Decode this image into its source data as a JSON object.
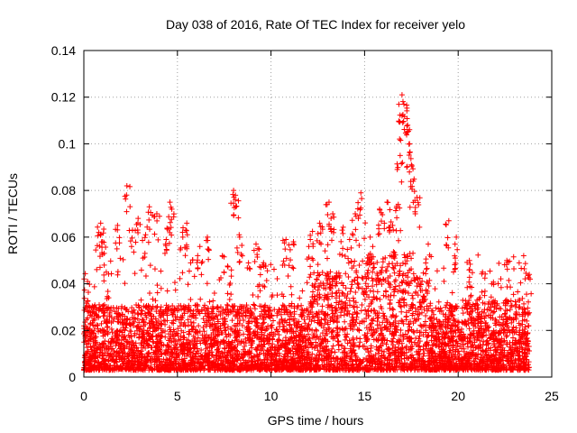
{
  "chart_data": {
    "type": "scatter",
    "title": "Day 038 of 2016, Rate Of TEC Index for receiver yelo",
    "xlabel": "GPS time / hours",
    "ylabel": "ROTI / TECUs",
    "xlim": [
      0,
      25
    ],
    "ylim": [
      0,
      0.14
    ],
    "xticks": [
      0,
      5,
      10,
      15,
      20,
      25
    ],
    "xtick_labels": [
      "0",
      "5",
      "10",
      "15",
      "20",
      "25"
    ],
    "yticks": [
      0,
      0.02,
      0.04,
      0.06,
      0.08,
      0.1,
      0.12,
      0.14
    ],
    "ytick_labels": [
      "0",
      "0.02",
      "0.04",
      "0.06",
      "0.08",
      "0.1",
      "0.12",
      "0.14"
    ],
    "grid": true,
    "marker": "+",
    "color": "#ff0000",
    "x_range_of_data": [
      0,
      23.8
    ],
    "series": [
      {
        "name": "ROTI",
        "notes": "dense scatter, representative points sampled",
        "points": [
          [
            0.2,
            0.041
          ],
          [
            0.5,
            0.028
          ],
          [
            0.8,
            0.062
          ],
          [
            0.9,
            0.066
          ],
          [
            1.0,
            0.058
          ],
          [
            1.2,
            0.045
          ],
          [
            1.8,
            0.065
          ],
          [
            2.3,
            0.082
          ],
          [
            2.6,
            0.063
          ],
          [
            2.9,
            0.068
          ],
          [
            3.3,
            0.061
          ],
          [
            3.5,
            0.073
          ],
          [
            3.9,
            0.07
          ],
          [
            4.4,
            0.059
          ],
          [
            4.6,
            0.075
          ],
          [
            4.7,
            0.072
          ],
          [
            5.3,
            0.064
          ],
          [
            5.5,
            0.066
          ],
          [
            6.2,
            0.056
          ],
          [
            6.6,
            0.06
          ],
          [
            7.4,
            0.052
          ],
          [
            8.0,
            0.08
          ],
          [
            8.1,
            0.078
          ],
          [
            8.3,
            0.061
          ],
          [
            9.2,
            0.057
          ],
          [
            9.6,
            0.049
          ],
          [
            10.8,
            0.059
          ],
          [
            11.2,
            0.058
          ],
          [
            12.1,
            0.059
          ],
          [
            12.6,
            0.066
          ],
          [
            13.1,
            0.075
          ],
          [
            13.3,
            0.07
          ],
          [
            13.8,
            0.063
          ],
          [
            14.2,
            0.059
          ],
          [
            14.5,
            0.07
          ],
          [
            14.8,
            0.079
          ],
          [
            15.3,
            0.06
          ],
          [
            15.8,
            0.072
          ],
          [
            16.2,
            0.075
          ],
          [
            16.5,
            0.065
          ],
          [
            16.8,
            0.074
          ],
          [
            16.9,
            0.095
          ],
          [
            17.0,
            0.112
          ],
          [
            17.0,
            0.121
          ],
          [
            17.1,
            0.117
          ],
          [
            17.3,
            0.108
          ],
          [
            17.4,
            0.1
          ],
          [
            17.5,
            0.091
          ],
          [
            17.6,
            0.084
          ],
          [
            17.8,
            0.077
          ],
          [
            18.4,
            0.057
          ],
          [
            19.5,
            0.067
          ],
          [
            19.9,
            0.06
          ],
          [
            20.6,
            0.05
          ],
          [
            21.3,
            0.045
          ],
          [
            21.8,
            0.04
          ],
          [
            22.6,
            0.05
          ],
          [
            23.5,
            0.052
          ],
          [
            23.8,
            0.044
          ]
        ]
      }
    ]
  }
}
